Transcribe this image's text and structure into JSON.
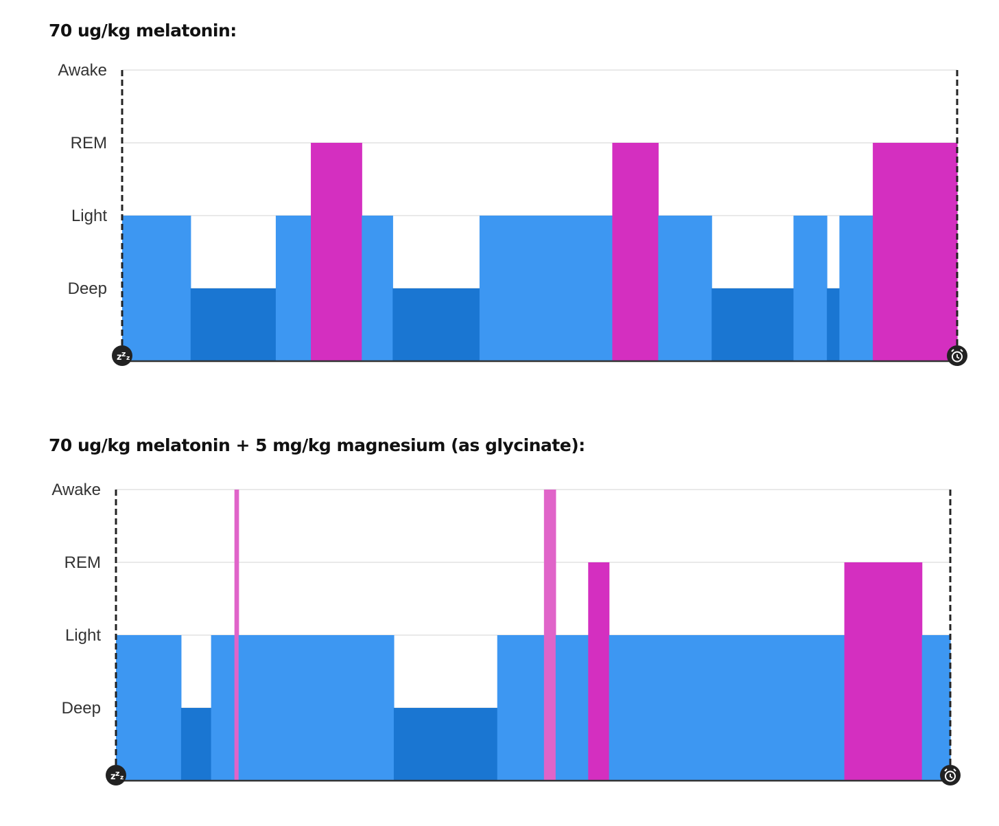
{
  "colors": {
    "light": "#3d97f2",
    "deep": "#1a76d2",
    "rem": "#d42fc0",
    "awake": "#e064c9",
    "grid": "#e2e2e2",
    "axis": "#333333",
    "marker": "#222222"
  },
  "icons": {
    "start": "sleep-zzz-icon",
    "end": "alarm-clock-icon"
  },
  "chart_data": [
    {
      "type": "bar",
      "title": "70 ug/kg melatonin:",
      "y_categories": [
        "Deep",
        "Light",
        "REM",
        "Awake"
      ],
      "x_unit": "fraction of night (0 = sleep start, 1 = alarm)",
      "grid": true,
      "segments": [
        {
          "stage": "Light",
          "start": 0.0,
          "end": 0.082
        },
        {
          "stage": "Deep",
          "start": 0.082,
          "end": 0.184
        },
        {
          "stage": "Light",
          "start": 0.184,
          "end": 0.226
        },
        {
          "stage": "REM",
          "start": 0.226,
          "end": 0.287
        },
        {
          "stage": "Light",
          "start": 0.287,
          "end": 0.324
        },
        {
          "stage": "Deep",
          "start": 0.324,
          "end": 0.428
        },
        {
          "stage": "Light",
          "start": 0.428,
          "end": 0.587
        },
        {
          "stage": "REM",
          "start": 0.587,
          "end": 0.642
        },
        {
          "stage": "Light",
          "start": 0.642,
          "end": 0.706
        },
        {
          "stage": "Deep",
          "start": 0.706,
          "end": 0.804
        },
        {
          "stage": "Light",
          "start": 0.804,
          "end": 0.844
        },
        {
          "stage": "Deep",
          "start": 0.844,
          "end": 0.859
        },
        {
          "stage": "Light",
          "start": 0.859,
          "end": 0.899
        },
        {
          "stage": "REM",
          "start": 0.899,
          "end": 1.0
        }
      ]
    },
    {
      "type": "bar",
      "title": "70 ug/kg melatonin + 5 mg/kg magnesium (as glycinate):",
      "y_categories": [
        "Deep",
        "Light",
        "REM",
        "Awake"
      ],
      "x_unit": "fraction of night (0 = sleep start, 1 = alarm)",
      "grid": true,
      "segments": [
        {
          "stage": "Light",
          "start": 0.0,
          "end": 0.078
        },
        {
          "stage": "Deep",
          "start": 0.078,
          "end": 0.114
        },
        {
          "stage": "Light",
          "start": 0.114,
          "end": 0.142
        },
        {
          "stage": "Awake",
          "start": 0.142,
          "end": 0.147
        },
        {
          "stage": "Light",
          "start": 0.147,
          "end": 0.333
        },
        {
          "stage": "Deep",
          "start": 0.333,
          "end": 0.457
        },
        {
          "stage": "Light",
          "start": 0.457,
          "end": 0.513
        },
        {
          "stage": "Awake",
          "start": 0.513,
          "end": 0.527
        },
        {
          "stage": "Light",
          "start": 0.527,
          "end": 0.566
        },
        {
          "stage": "REM",
          "start": 0.566,
          "end": 0.591
        },
        {
          "stage": "Light",
          "start": 0.591,
          "end": 0.873
        },
        {
          "stage": "REM",
          "start": 0.873,
          "end": 0.966
        },
        {
          "stage": "Light",
          "start": 0.966,
          "end": 1.0
        }
      ]
    }
  ]
}
